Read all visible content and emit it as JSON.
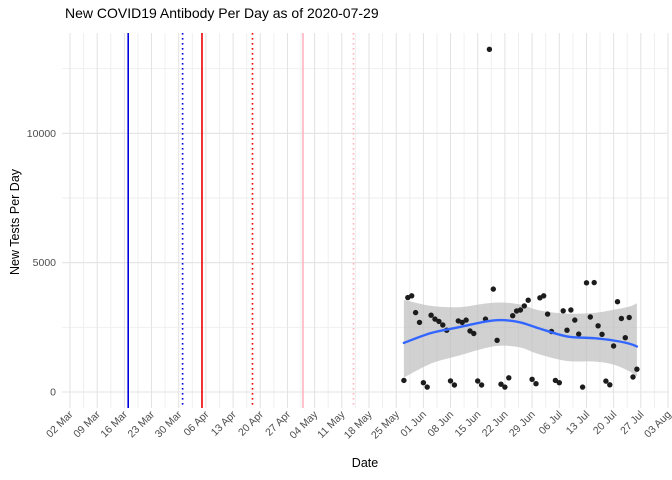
{
  "title": "New COVID19 Antibody Per Day as of 2020-07-29",
  "x_axis": {
    "label": "Date",
    "tick_labels": [
      "02 Mar",
      "09 Mar",
      "16 Mar",
      "23 Mar",
      "30 Mar",
      "06 Apr",
      "13 Apr",
      "20 Apr",
      "27 Apr",
      "04 May",
      "11 May",
      "18 May",
      "25 May",
      "01 Jun",
      "08 Jun",
      "15 Jun",
      "22 Jun",
      "29 Jun",
      "06 Jul",
      "13 Jul",
      "20 Jul",
      "27 Jul",
      "03 Aug"
    ]
  },
  "y_axis": {
    "label": "New Tests Per Day",
    "tick_values": [
      0,
      5000,
      10000
    ]
  },
  "chart_data": {
    "type": "scatter",
    "title": "New COVID19 Antibody Per Day as of 2020-07-29",
    "xlabel": "Date",
    "ylabel": "New Tests Per Day",
    "x_range": [
      "2020-02-29",
      "2020-08-05"
    ],
    "ylim": [
      -660,
      13880
    ],
    "y_major_gridlines": [
      0,
      5000,
      10000
    ],
    "y_minor_gridlines": [
      2500,
      7500,
      12500
    ],
    "grid": true,
    "legend": "none",
    "points": [
      [
        "2020-05-27",
        450
      ],
      [
        "2020-05-28",
        3650
      ],
      [
        "2020-05-29",
        3720
      ],
      [
        "2020-05-30",
        3070
      ],
      [
        "2020-05-31",
        2690
      ],
      [
        "2020-06-01",
        360
      ],
      [
        "2020-06-02",
        190
      ],
      [
        "2020-06-03",
        2970
      ],
      [
        "2020-06-04",
        2820
      ],
      [
        "2020-06-05",
        2730
      ],
      [
        "2020-06-06",
        2590
      ],
      [
        "2020-06-07",
        2390
      ],
      [
        "2020-06-08",
        430
      ],
      [
        "2020-06-09",
        270
      ],
      [
        "2020-06-10",
        2750
      ],
      [
        "2020-06-11",
        2690
      ],
      [
        "2020-06-12",
        2780
      ],
      [
        "2020-06-13",
        2360
      ],
      [
        "2020-06-14",
        2260
      ],
      [
        "2020-06-15",
        425
      ],
      [
        "2020-06-16",
        270
      ],
      [
        "2020-06-17",
        2820
      ],
      [
        "2020-06-18",
        13250
      ],
      [
        "2020-06-19",
        3980
      ],
      [
        "2020-06-20",
        2000
      ],
      [
        "2020-06-21",
        300
      ],
      [
        "2020-06-22",
        190
      ],
      [
        "2020-06-23",
        550
      ],
      [
        "2020-06-24",
        2950
      ],
      [
        "2020-06-25",
        3130
      ],
      [
        "2020-06-26",
        3170
      ],
      [
        "2020-06-27",
        3330
      ],
      [
        "2020-06-28",
        3550
      ],
      [
        "2020-06-29",
        490
      ],
      [
        "2020-06-30",
        320
      ],
      [
        "2020-07-01",
        3640
      ],
      [
        "2020-07-02",
        3720
      ],
      [
        "2020-07-03",
        3010
      ],
      [
        "2020-07-04",
        2340
      ],
      [
        "2020-07-05",
        450
      ],
      [
        "2020-07-06",
        360
      ],
      [
        "2020-07-07",
        3140
      ],
      [
        "2020-07-08",
        2390
      ],
      [
        "2020-07-09",
        3170
      ],
      [
        "2020-07-10",
        2780
      ],
      [
        "2020-07-11",
        2240
      ],
      [
        "2020-07-12",
        190
      ],
      [
        "2020-07-13",
        4220
      ],
      [
        "2020-07-14",
        2900
      ],
      [
        "2020-07-15",
        4230
      ],
      [
        "2020-07-16",
        2560
      ],
      [
        "2020-07-17",
        2230
      ],
      [
        "2020-07-18",
        420
      ],
      [
        "2020-07-19",
        280
      ],
      [
        "2020-07-20",
        1780
      ],
      [
        "2020-07-21",
        3490
      ],
      [
        "2020-07-22",
        2840
      ],
      [
        "2020-07-23",
        2100
      ],
      [
        "2020-07-24",
        2880
      ],
      [
        "2020-07-25",
        580
      ],
      [
        "2020-07-26",
        880
      ]
    ],
    "smooth": {
      "points": [
        {
          "date": "2020-05-27",
          "fit": 1900,
          "lo": 560,
          "hi": 3560
        },
        {
          "date": "2020-06-03",
          "fit": 2280,
          "lo": 1100,
          "hi": 3330
        },
        {
          "date": "2020-06-10",
          "fit": 2500,
          "lo": 1400,
          "hi": 3280
        },
        {
          "date": "2020-06-17",
          "fit": 2720,
          "lo": 1700,
          "hi": 3420
        },
        {
          "date": "2020-06-21",
          "fit": 2780,
          "lo": 1790,
          "hi": 3460
        },
        {
          "date": "2020-06-26",
          "fit": 2690,
          "lo": 1720,
          "hi": 3380
        },
        {
          "date": "2020-07-01",
          "fit": 2450,
          "lo": 1450,
          "hi": 3150
        },
        {
          "date": "2020-07-08",
          "fit": 2150,
          "lo": 1200,
          "hi": 3030
        },
        {
          "date": "2020-07-15",
          "fit": 2080,
          "lo": 1180,
          "hi": 3060
        },
        {
          "date": "2020-07-20",
          "fit": 1990,
          "lo": 1060,
          "hi": 3180
        },
        {
          "date": "2020-07-24",
          "fit": 1870,
          "lo": 800,
          "hi": 3300
        },
        {
          "date": "2020-07-26",
          "fit": 1760,
          "lo": 600,
          "hi": 3430
        }
      ]
    },
    "vlines": [
      {
        "date": "2020-03-17",
        "color": "#0000dd",
        "style": "solid"
      },
      {
        "date": "2020-03-31",
        "color": "#0000dd",
        "style": "dotted"
      },
      {
        "date": "2020-04-05",
        "color": "#ee0000",
        "style": "solid"
      },
      {
        "date": "2020-04-18",
        "color": "#ee0000",
        "style": "dotted"
      },
      {
        "date": "2020-05-01",
        "color": "#ffb3c1",
        "style": "solid"
      },
      {
        "date": "2020-05-14",
        "color": "#ffb3c1",
        "style": "dotted"
      }
    ],
    "style": {
      "point_color": "#1c1c1c",
      "smooth_line_color": "#3366ff",
      "ribbon_color": "#bebebe",
      "major_grid_color": "#e3e3e3",
      "minor_grid_color": "#eeeeee",
      "tick_label_color": "#4d4d4d"
    }
  }
}
